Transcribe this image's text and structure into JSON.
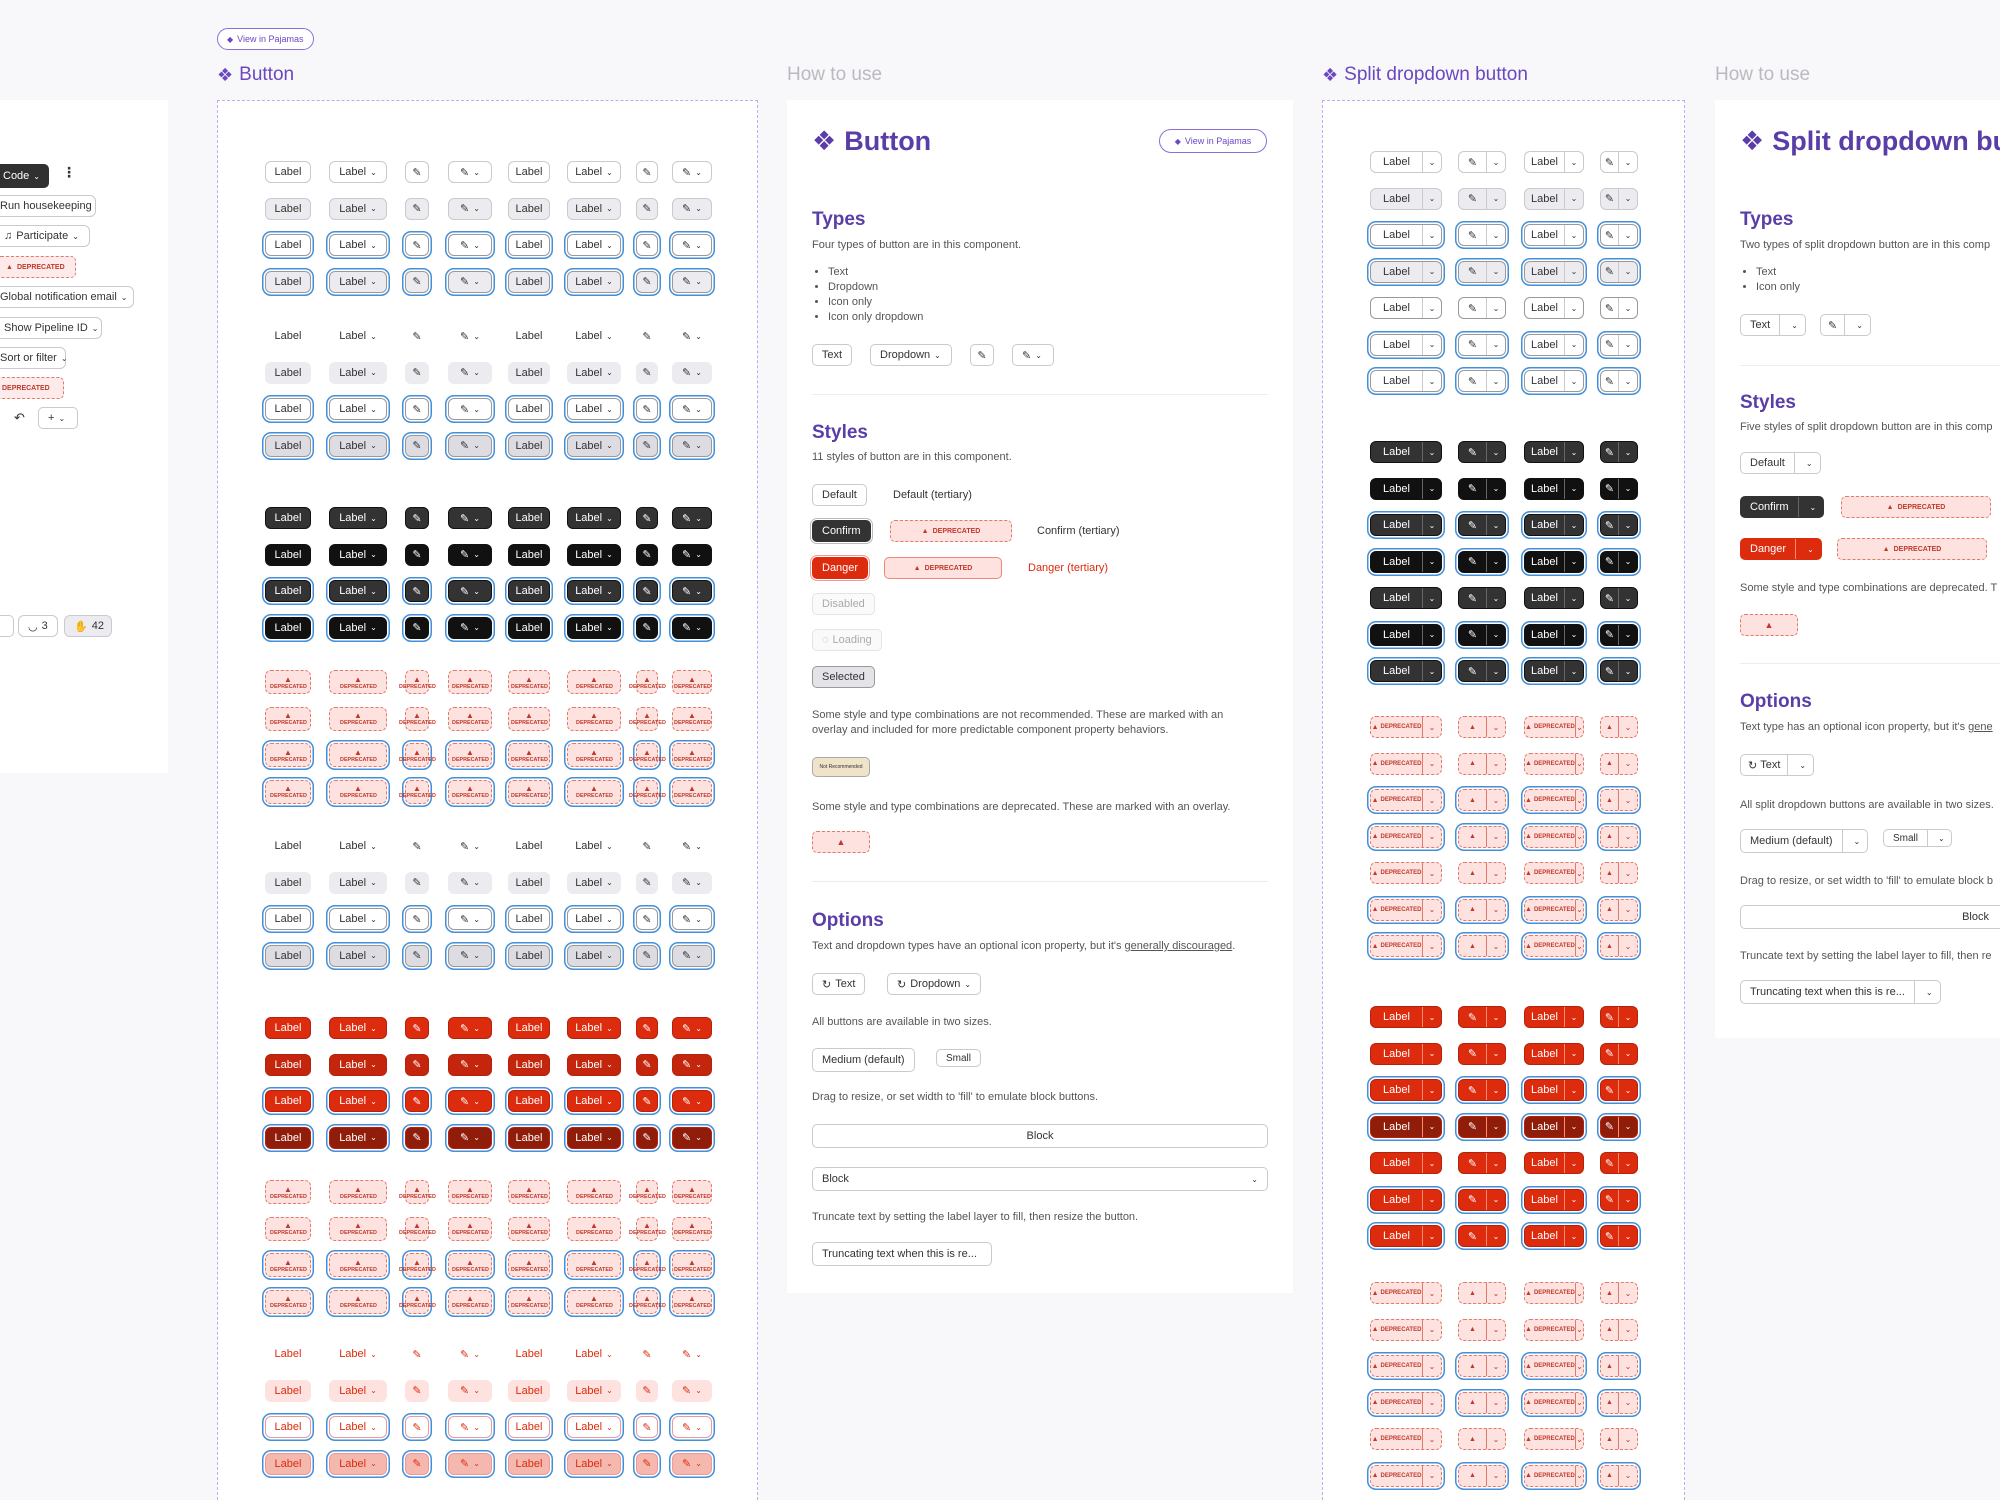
{
  "top_link": "View in Pajamas",
  "left_panel": {
    "code_button": "Code",
    "items": [
      "Run housekeeping",
      "Participate",
      "DEPRECATED",
      "Global notification email",
      "Show Pipeline ID",
      "Sort or filter",
      "DEPRECATED"
    ],
    "counts": [
      "3",
      "42"
    ]
  },
  "button_frame": {
    "title": "Button",
    "cell_label": "Label",
    "deprecated_label": "DEPRECATED"
  },
  "how_to_use_1": {
    "header": "How to use",
    "title": "Button",
    "view_link": "View in Pajamas",
    "types_title": "Types",
    "types_desc": "Four types of button are in this component.",
    "types_list": [
      "Text",
      "Dropdown",
      "Icon only",
      "Icon only dropdown"
    ],
    "type_buttons": {
      "text": "Text",
      "dropdown": "Dropdown"
    },
    "styles_title": "Styles",
    "styles_desc": "11 styles of button are in this component.",
    "style_default": "Default",
    "style_default_tertiary": "Default (tertiary)",
    "style_confirm": "Confirm",
    "style_confirm_tertiary": "Confirm (tertiary)",
    "style_danger": "Danger",
    "style_danger_tertiary": "Danger (tertiary)",
    "style_disabled": "Disabled",
    "style_loading": "Loading",
    "style_selected": "Selected",
    "deprecated_tag": "DEPRECATED",
    "not_recommended_note": "Some style and type combinations are not recommended. These are marked with an overlay and included for more predictable component property behaviors.",
    "not_recommended_sample": "Not Recommended",
    "deprecated_note": "Some style and type combinations are deprecated. These are marked with an overlay.",
    "options_title": "Options",
    "options_desc_prefix": "Text and dropdown types have an optional icon property, but it's ",
    "options_desc_link": "generally discouraged",
    "option_text": "Text",
    "option_dropdown": "Dropdown",
    "sizes_note": "All buttons are available in two sizes.",
    "size_medium": "Medium (default)",
    "size_small": "Small",
    "block_note": "Drag to resize, or set width to 'fill' to emulate block buttons.",
    "block_label": "Block",
    "block_dropdown_label": "Block",
    "truncate_note": "Truncate text by setting the label layer to fill, then resize the button.",
    "truncate_label": "Truncating text when this is re..."
  },
  "split_frame": {
    "title": "Split dropdown button",
    "cell_label": "Label",
    "deprecated_label": "DEPRECATED"
  },
  "how_to_use_2": {
    "header": "How to use",
    "title": "Split dropdown but",
    "types_title": "Types",
    "types_desc": "Two types of split dropdown button are in this comp",
    "types_list": [
      "Text",
      "Icon only"
    ],
    "type_text": "Text",
    "styles_title": "Styles",
    "styles_desc": "Five styles of split dropdown button are in this comp",
    "style_default": "Default",
    "style_confirm": "Confirm",
    "style_danger": "Danger",
    "deprecated_tag": "DEPRECATED",
    "deprecated_note": "Some style and type combinations are deprecated. T",
    "options_title": "Options",
    "options_desc_prefix": "Text type has an optional icon property, but it's ",
    "options_desc_link": "gene",
    "option_text": "Text",
    "sizes_note": "All split dropdown buttons are available in two sizes.",
    "size_medium": "Medium (default)",
    "size_small": "Small",
    "block_note": "Drag to resize, or set width to 'fill' to emulate block b",
    "block_label": "Block",
    "truncate_note": "Truncate text by setting the label layer to fill, then re",
    "truncate_label": "Truncating text when this is re..."
  },
  "colors": {
    "accent": "#6b47c0",
    "dark": "#303030",
    "black": "#111111",
    "danger": "#dd2b0e",
    "focus": "#428fdc"
  }
}
